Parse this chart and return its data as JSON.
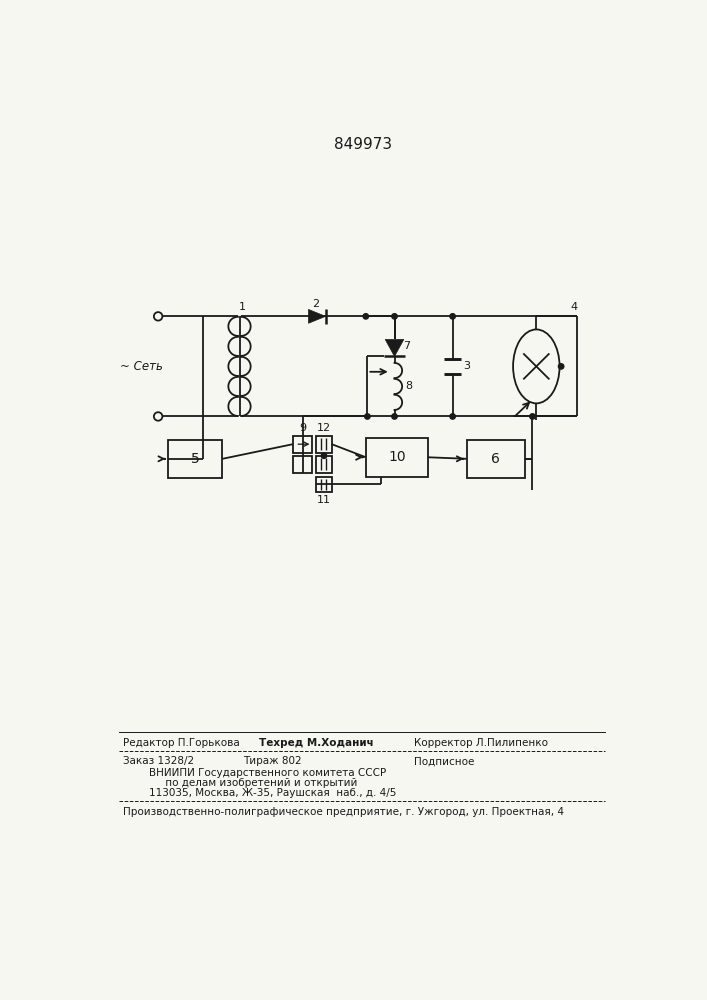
{
  "title": "849973",
  "bg_color": "#f7f7f2",
  "line_color": "#1a1a1a",
  "text_color": "#1a1a1a",
  "footer_line1a": "Редактор П.Горькова",
  "footer_line1b": "Техред М.Ходанич",
  "footer_line1c": "Корректор Л.Пилипенко",
  "footer_line2a": "Заказ 1328/2",
  "footer_line2b": "Тираж 802",
  "footer_line2c": "Подписное",
  "footer_line3": "        ВНИИПИ Государственного комитета СССР",
  "footer_line4": "             по делам изобретений и открытий",
  "footer_line5": "        113035, Москва, Ж-35, Раушская  наб., д. 4/5",
  "footer_line6": "Производственно-полиграфическое предприятие, г. Ужгород, ул. Проектная, 4",
  "net_label": "~ Сеть"
}
